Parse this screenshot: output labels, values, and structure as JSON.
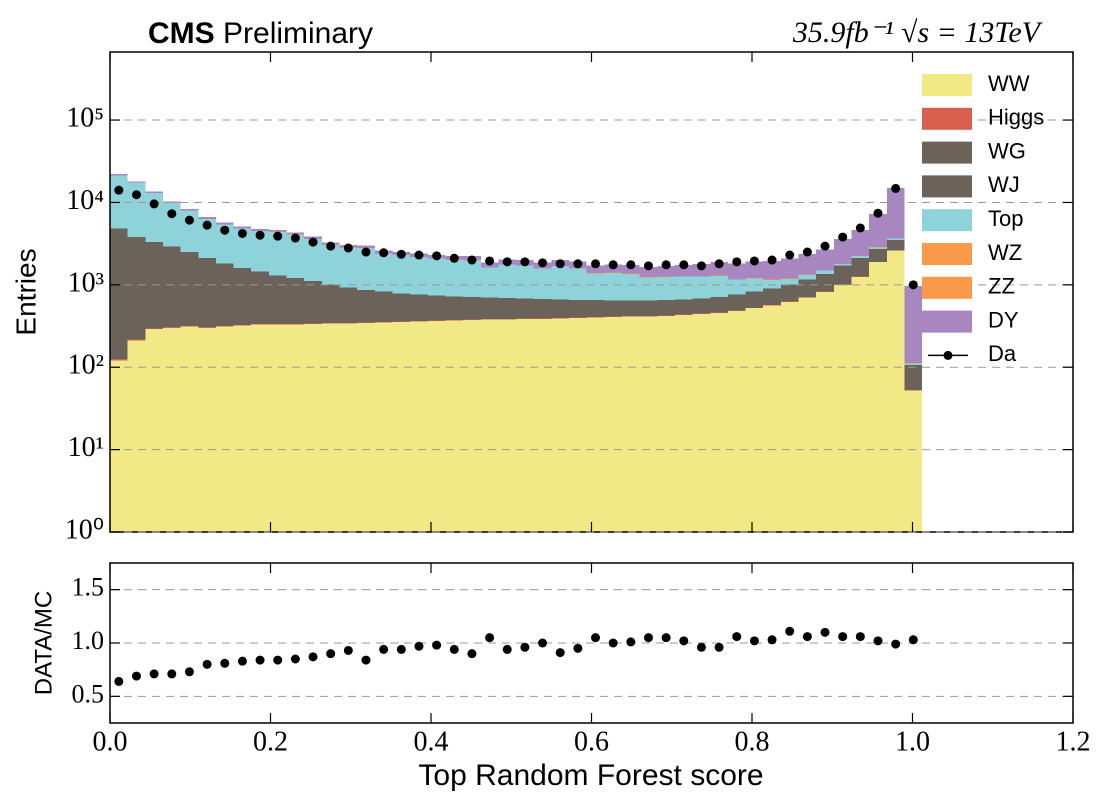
{
  "chart_data": [
    {
      "type": "stacked_histogram",
      "experiment": "CMS",
      "status": "Preliminary",
      "lumi_label": "35.9fb⁻¹ √s = 13TeV",
      "y_label": "Entries",
      "log_y": true,
      "grid": true,
      "legend": "upper right",
      "xlim": [
        0,
        1.2
      ],
      "ylim": [
        1,
        670000
      ],
      "yticks": [
        {
          "value": 1,
          "label": "10⁰"
        },
        {
          "value": 10,
          "label": "10¹"
        },
        {
          "value": 100,
          "label": "10²"
        },
        {
          "value": 1000,
          "label": "10³"
        },
        {
          "value": 10000,
          "label": "10⁴"
        },
        {
          "value": 100000,
          "label": "10⁵"
        }
      ],
      "bins": [
        0,
        0.022,
        0.044,
        0.066,
        0.088,
        0.11,
        0.132,
        0.154,
        0.176,
        0.198,
        0.22,
        0.242,
        0.264,
        0.286,
        0.308,
        0.33,
        0.352,
        0.374,
        0.396,
        0.418,
        0.44,
        0.462,
        0.484,
        0.506,
        0.528,
        0.55,
        0.572,
        0.594,
        0.616,
        0.638,
        0.66,
        0.682,
        0.704,
        0.726,
        0.748,
        0.77,
        0.792,
        0.814,
        0.836,
        0.858,
        0.88,
        0.902,
        0.924,
        0.946,
        0.968,
        0.99,
        1.012
      ],
      "series": [
        {
          "name": "WW",
          "color": "#f0e986",
          "values": [
            120,
            210,
            290,
            300,
            310,
            300,
            310,
            320,
            330,
            330,
            330,
            335,
            340,
            340,
            345,
            350,
            355,
            360,
            365,
            370,
            375,
            380,
            380,
            385,
            385,
            390,
            395,
            400,
            405,
            410,
            415,
            420,
            430,
            440,
            455,
            480,
            520,
            560,
            620,
            700,
            820,
            1000,
            1250,
            1900,
            2600,
            52
          ]
        },
        {
          "name": "Higgs",
          "color": "#d9604f",
          "values": [
            6,
            6,
            6,
            6,
            6,
            6,
            6,
            6,
            6,
            6,
            6,
            6,
            6,
            6,
            6,
            6,
            6,
            6,
            6,
            6,
            6,
            6,
            6,
            6,
            6,
            6,
            6,
            6,
            6,
            6,
            6,
            6,
            6,
            6,
            6,
            6,
            6,
            6,
            6,
            6,
            6,
            6,
            6,
            6,
            6,
            1
          ]
        },
        {
          "name": "WG",
          "color": "#6b6259",
          "values": [
            40,
            40,
            40,
            40,
            40,
            25,
            25,
            25,
            25,
            25,
            25,
            25,
            25,
            15,
            15,
            15,
            15,
            15,
            15,
            15,
            15,
            15,
            15,
            15,
            15,
            15,
            15,
            15,
            15,
            15,
            15,
            15,
            15,
            15,
            15,
            15,
            15,
            15,
            15,
            15,
            15,
            15,
            15,
            15,
            15,
            2
          ]
        },
        {
          "name": "WJ",
          "color": "#6b6259",
          "values": [
            4640,
            3550,
            2970,
            2560,
            2150,
            1775,
            1465,
            1255,
            1095,
            945,
            845,
            740,
            635,
            565,
            500,
            455,
            410,
            385,
            360,
            335,
            320,
            305,
            295,
            280,
            270,
            255,
            240,
            235,
            220,
            215,
            210,
            215,
            215,
            225,
            240,
            265,
            285,
            325,
            365,
            435,
            515,
            685,
            835,
            785,
            885,
            51
          ]
        },
        {
          "name": "Top",
          "color": "#8ed3d9",
          "values": [
            16500,
            13600,
            9700,
            7000,
            5500,
            4200,
            3600,
            3200,
            3050,
            3100,
            2900,
            2500,
            2050,
            1890,
            1920,
            1580,
            1520,
            1400,
            1340,
            1280,
            1270,
            910,
            1070,
            1030,
            900,
            1020,
            920,
            720,
            750,
            710,
            580,
            590,
            590,
            570,
            565,
            390,
            370,
            240,
            170,
            160,
            130,
            80,
            120,
            150,
            150,
            5
          ]
        },
        {
          "name": "WZ",
          "color": "#f99a4a",
          "values": [
            8,
            8,
            8,
            8,
            8,
            8,
            8,
            8,
            8,
            8,
            8,
            8,
            8,
            8,
            8,
            8,
            8,
            8,
            8,
            8,
            8,
            8,
            8,
            8,
            8,
            8,
            8,
            8,
            8,
            8,
            8,
            8,
            8,
            8,
            8,
            8,
            8,
            8,
            8,
            8,
            8,
            8,
            8,
            8,
            8,
            1
          ]
        },
        {
          "name": "ZZ",
          "color": "#f99a4a",
          "values": [
            3,
            3,
            3,
            3,
            3,
            3,
            3,
            3,
            3,
            3,
            3,
            3,
            3,
            3,
            3,
            3,
            3,
            3,
            3,
            3,
            3,
            3,
            3,
            3,
            3,
            3,
            3,
            3,
            3,
            3,
            3,
            3,
            3,
            3,
            3,
            3,
            3,
            3,
            3,
            3,
            3,
            3,
            3,
            3,
            3,
            1
          ]
        },
        {
          "name": "DY",
          "color": "#a887c0",
          "values": [
            700,
            600,
            500,
            400,
            350,
            300,
            280,
            260,
            250,
            240,
            230,
            220,
            210,
            200,
            200,
            200,
            200,
            210,
            220,
            230,
            240,
            250,
            260,
            270,
            280,
            300,
            320,
            340,
            360,
            380,
            400,
            430,
            470,
            520,
            600,
            640,
            720,
            800,
            900,
            1050,
            1200,
            1800,
            2400,
            4400,
            11300,
            860
          ]
        },
        {
          "name": "Da",
          "color": "#000000",
          "style": "points",
          "values": [
            14100,
            12400,
            9600,
            7300,
            6100,
            5300,
            4600,
            4200,
            4000,
            3900,
            3700,
            3300,
            2950,
            2800,
            2500,
            2450,
            2350,
            2300,
            2250,
            2100,
            2000,
            1950,
            1900,
            1900,
            1850,
            1800,
            1800,
            1800,
            1750,
            1750,
            1700,
            1750,
            1750,
            1700,
            1800,
            1900,
            1950,
            2000,
            2300,
            2500,
            2950,
            3800,
            4900,
            7400,
            14800,
            1000
          ]
        }
      ]
    },
    {
      "type": "errorbar",
      "x_label": "Top Random Forest score",
      "y_label": "DATA/MC",
      "grid": true,
      "color": "#000000",
      "xlim": [
        0,
        1.2
      ],
      "ylim": [
        0.25,
        1.75
      ],
      "xticks": [
        {
          "value": 0,
          "label": "0.0"
        },
        0.2,
        0.4,
        0.6,
        0.8,
        {
          "value": 1,
          "label": "1.0"
        },
        1.2
      ],
      "yticks": [
        0.5,
        {
          "value": 1,
          "label": "1.0"
        },
        1.5
      ],
      "values": [
        0.64,
        0.69,
        0.71,
        0.71,
        0.73,
        0.8,
        0.81,
        0.83,
        0.84,
        0.84,
        0.85,
        0.87,
        0.9,
        0.93,
        0.84,
        0.94,
        0.94,
        0.97,
        0.98,
        0.94,
        0.9,
        1.05,
        0.94,
        0.96,
        1.0,
        0.91,
        0.95,
        1.05,
        1.0,
        1.01,
        1.05,
        1.05,
        1.02,
        0.96,
        0.96,
        1.06,
        1.02,
        1.03,
        1.11,
        1.06,
        1.1,
        1.06,
        1.06,
        1.02,
        0.99,
        1.03
      ],
      "errors": [
        0.01,
        0.01,
        0.01,
        0.01,
        0.01,
        0.01,
        0.01,
        0.01,
        0.01,
        0.01,
        0.01,
        0.01,
        0.02,
        0.02,
        0.02,
        0.02,
        0.02,
        0.02,
        0.02,
        0.02,
        0.02,
        0.02,
        0.02,
        0.02,
        0.02,
        0.02,
        0.02,
        0.02,
        0.02,
        0.02,
        0.02,
        0.02,
        0.02,
        0.02,
        0.02,
        0.02,
        0.02,
        0.02,
        0.02,
        0.02,
        0.02,
        0.02,
        0.02,
        0.02,
        0.02,
        0.04
      ]
    }
  ]
}
